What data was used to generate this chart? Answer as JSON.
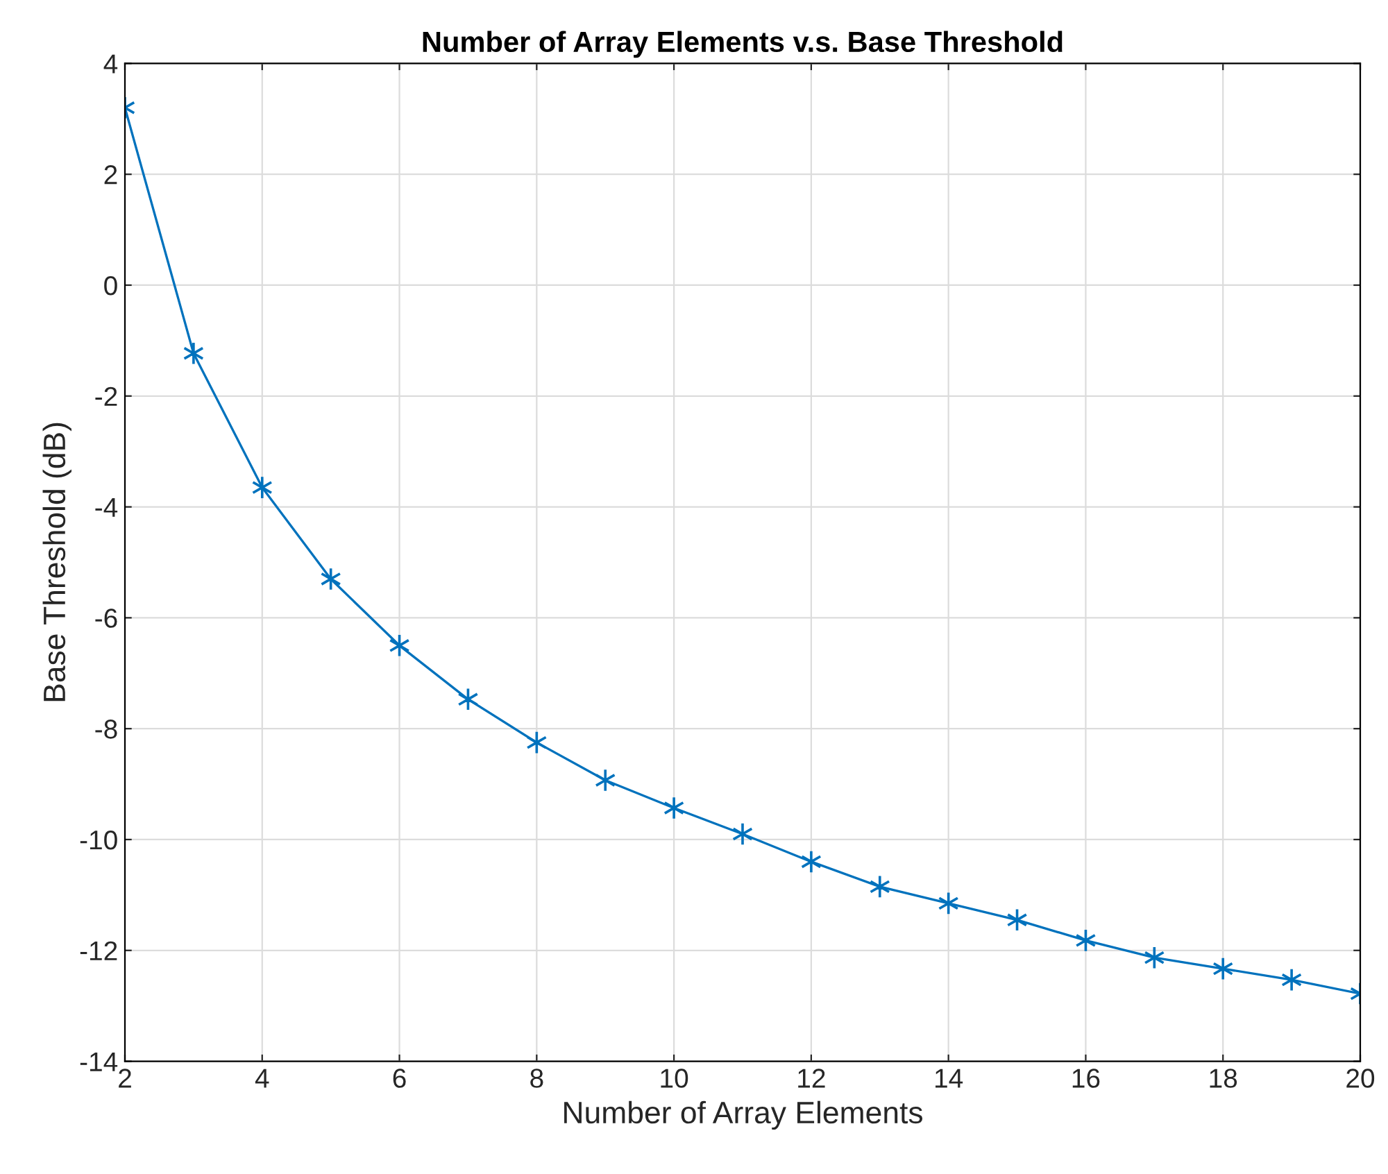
{
  "chart_data": {
    "type": "line",
    "title": "Number of Array Elements v.s. Base Threshold",
    "xlabel": "Number of Array Elements",
    "ylabel": "Base Threshold (dB)",
    "x": [
      2,
      3,
      4,
      5,
      6,
      7,
      8,
      9,
      10,
      11,
      12,
      13,
      14,
      15,
      16,
      17,
      18,
      19,
      20
    ],
    "series": [
      {
        "color": "#0072bd",
        "values": [
          3.2,
          -1.23,
          -3.65,
          -5.3,
          -6.5,
          -7.47,
          -8.25,
          -8.93,
          -9.43,
          -9.9,
          -10.4,
          -10.85,
          -11.15,
          -11.45,
          -11.82,
          -12.13,
          -12.33,
          -12.53,
          -12.78
        ]
      }
    ],
    "xlim": [
      2,
      20
    ],
    "xticks": [
      2,
      4,
      6,
      8,
      10,
      12,
      14,
      16,
      18,
      20
    ],
    "ylim": [
      -14,
      4
    ],
    "yticks": [
      -14,
      -12,
      -10,
      -8,
      -6,
      -4,
      -2,
      0,
      2,
      4
    ],
    "grid": true,
    "marker": "cross",
    "line_style": "solid",
    "legend": false
  }
}
